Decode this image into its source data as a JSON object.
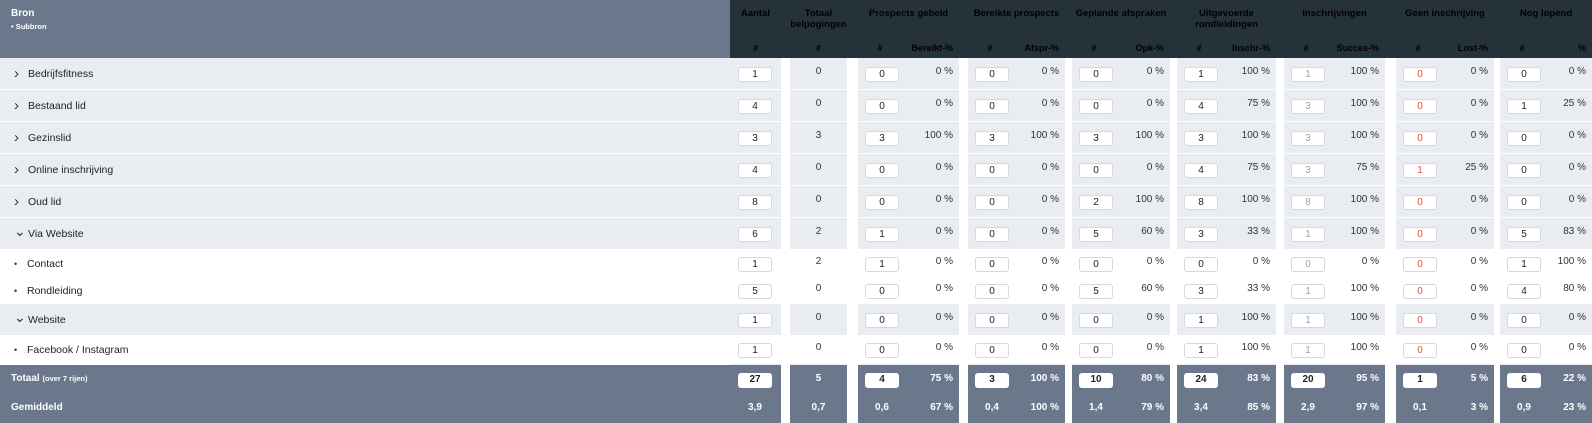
{
  "header": {
    "bron": "Bron",
    "subbron": "• Subbron",
    "aantal": "Aantal",
    "totaal_belpogingen": [
      "Totaal",
      "belpogingen"
    ],
    "groups": [
      "Prospects gebeld",
      "Bereikte prospects",
      "Geplande afspraken",
      [
        "Uitgevoerde",
        "rondleidingen"
      ],
      "Inschrijvingen",
      "Geen inschrijving",
      "Nog lopend"
    ],
    "hash": "#",
    "subcols": [
      "Bereikt-%",
      "Afspr-%",
      "Opk-%",
      "Inschr-%",
      "Succes-%",
      "Lost-%",
      "%"
    ]
  },
  "rows": [
    {
      "type": "parent",
      "icon": "chevron-right-icon",
      "label": "Bedrijfsfitness",
      "aantal": "1",
      "bel": "0",
      "pairs": [
        [
          "0",
          "0 %"
        ],
        [
          "0",
          "0 %"
        ],
        [
          "0",
          "0 %"
        ],
        [
          "1",
          "100 %"
        ],
        [
          "1",
          "100 %"
        ],
        [
          "0",
          "0 %"
        ],
        [
          "0",
          "0 %"
        ]
      ]
    },
    {
      "type": "parent",
      "icon": "chevron-right-icon",
      "label": "Bestaand lid",
      "aantal": "4",
      "bel": "0",
      "pairs": [
        [
          "0",
          "0 %"
        ],
        [
          "0",
          "0 %"
        ],
        [
          "0",
          "0 %"
        ],
        [
          "4",
          "75 %"
        ],
        [
          "3",
          "100 %"
        ],
        [
          "0",
          "0 %"
        ],
        [
          "1",
          "25 %"
        ]
      ]
    },
    {
      "type": "parent",
      "icon": "chevron-right-icon",
      "label": "Gezinslid",
      "aantal": "3",
      "bel": "3",
      "pairs": [
        [
          "3",
          "100 %"
        ],
        [
          "3",
          "100 %"
        ],
        [
          "3",
          "100 %"
        ],
        [
          "3",
          "100 %"
        ],
        [
          "3",
          "100 %"
        ],
        [
          "0",
          "0 %"
        ],
        [
          "0",
          "0 %"
        ]
      ]
    },
    {
      "type": "parent",
      "icon": "chevron-right-icon",
      "label": "Online inschrijving",
      "aantal": "4",
      "bel": "0",
      "pairs": [
        [
          "0",
          "0 %"
        ],
        [
          "0",
          "0 %"
        ],
        [
          "0",
          "0 %"
        ],
        [
          "4",
          "75 %"
        ],
        [
          "3",
          "75 %"
        ],
        [
          "1",
          "25 %"
        ],
        [
          "0",
          "0 %"
        ]
      ]
    },
    {
      "type": "parent",
      "icon": "chevron-right-icon",
      "label": "Oud lid",
      "aantal": "8",
      "bel": "0",
      "pairs": [
        [
          "0",
          "0 %"
        ],
        [
          "0",
          "0 %"
        ],
        [
          "2",
          "100 %"
        ],
        [
          "8",
          "100 %"
        ],
        [
          "8",
          "100 %"
        ],
        [
          "0",
          "0 %"
        ],
        [
          "0",
          "0 %"
        ]
      ]
    },
    {
      "type": "parent",
      "icon": "chevron-down-icon",
      "label": "Via Website",
      "aantal": "6",
      "bel": "2",
      "pairs": [
        [
          "1",
          "0 %"
        ],
        [
          "0",
          "0 %"
        ],
        [
          "5",
          "60 %"
        ],
        [
          "3",
          "33 %"
        ],
        [
          "1",
          "100 %"
        ],
        [
          "0",
          "0 %"
        ],
        [
          "5",
          "83 %"
        ]
      ]
    },
    {
      "type": "child",
      "icon": "bullet-icon",
      "label": "Contact",
      "aantal": "1",
      "bel": "2",
      "pairs": [
        [
          "1",
          "0 %"
        ],
        [
          "0",
          "0 %"
        ],
        [
          "0",
          "0 %"
        ],
        [
          "0",
          "0 %"
        ],
        [
          "0",
          "0 %"
        ],
        [
          "0",
          "0 %"
        ],
        [
          "1",
          "100 %"
        ]
      ]
    },
    {
      "type": "child",
      "icon": "bullet-icon",
      "label": "Rondleiding",
      "aantal": "5",
      "bel": "0",
      "pairs": [
        [
          "0",
          "0 %"
        ],
        [
          "0",
          "0 %"
        ],
        [
          "5",
          "60 %"
        ],
        [
          "3",
          "33 %"
        ],
        [
          "1",
          "100 %"
        ],
        [
          "0",
          "0 %"
        ],
        [
          "4",
          "80 %"
        ]
      ]
    },
    {
      "type": "parent",
      "icon": "chevron-down-icon",
      "label": "Website",
      "aantal": "1",
      "bel": "0",
      "pairs": [
        [
          "0",
          "0 %"
        ],
        [
          "0",
          "0 %"
        ],
        [
          "0",
          "0 %"
        ],
        [
          "1",
          "100 %"
        ],
        [
          "1",
          "100 %"
        ],
        [
          "0",
          "0 %"
        ],
        [
          "0",
          "0 %"
        ]
      ]
    },
    {
      "type": "child",
      "icon": "bullet-icon",
      "label": "Facebook / Instagram",
      "aantal": "1",
      "bel": "0",
      "pairs": [
        [
          "0",
          "0 %"
        ],
        [
          "0",
          "0 %"
        ],
        [
          "0",
          "0 %"
        ],
        [
          "1",
          "100 %"
        ],
        [
          "1",
          "100 %"
        ],
        [
          "0",
          "0 %"
        ],
        [
          "0",
          "0 %"
        ]
      ]
    }
  ],
  "footer": {
    "totaal": {
      "label": "Totaal",
      "note": "(over 7 rijen)",
      "aantal": "27",
      "bel": "5",
      "pairs": [
        [
          "4",
          "75 %"
        ],
        [
          "3",
          "100 %"
        ],
        [
          "10",
          "80 %"
        ],
        [
          "24",
          "83 %"
        ],
        [
          "20",
          "95 %"
        ],
        [
          "1",
          "5 %"
        ],
        [
          "6",
          "22 %"
        ]
      ]
    },
    "gemiddeld": {
      "label": "Gemiddeld",
      "aantal": "3,9",
      "bel": "0,7",
      "pairs": [
        [
          "0,6",
          "67 %"
        ],
        [
          "0,4",
          "100 %"
        ],
        [
          "1,4",
          "79 %"
        ],
        [
          "3,4",
          "85 %"
        ],
        [
          "2,9",
          "97 %"
        ],
        [
          "0,1",
          "3 %"
        ],
        [
          "0,9",
          "23 %"
        ]
      ]
    }
  },
  "colors": {
    "header_left": "#6b778a",
    "header_right": "#263239",
    "row_bg": "#e9ecf0",
    "lost_red": "#e05343",
    "muted_gray": "#9aa3ad"
  }
}
